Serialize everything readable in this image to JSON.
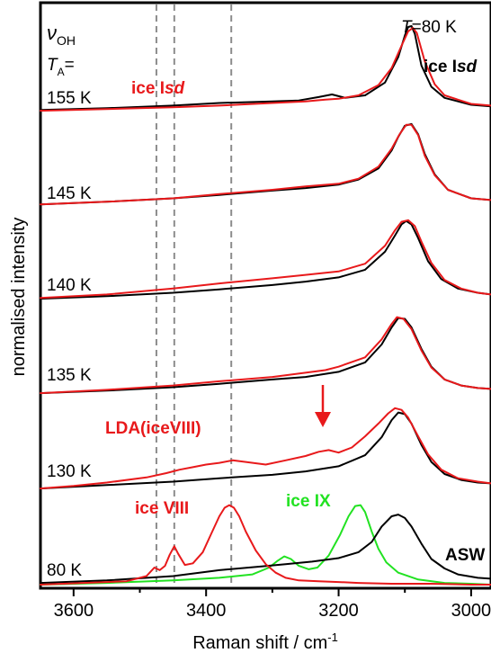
{
  "chart_data": {
    "type": "line",
    "xlabel": "Raman shift / cm",
    "xlabel_sup": "-1",
    "ylabel": "normalised intensity",
    "xlim": [
      3650,
      2970
    ],
    "x_ticks": [
      3600,
      3400,
      3200,
      3000
    ],
    "x_tick_labels": [
      "3600",
      "3400",
      "3200",
      "3000"
    ],
    "y_ticks": false,
    "grid": false,
    "dashed_reference_lines_x": [
      3475,
      3448,
      3362
    ],
    "annotations": {
      "nu_symbol": "ν",
      "nu_sub": "OH",
      "ta_symbol": "T",
      "ta_sub": "A",
      "ta_eq": "=",
      "temperature_T": "T",
      "temperature_value": "=80 K",
      "ice_isd_top": "ice I",
      "ice_isd_top_italic": "sd",
      "ice_isd_red": "ice I",
      "ice_isd_red_italic": "sd",
      "lda_label": "LDA(iceVIII)",
      "ice_viii": "ice VIII",
      "ice_ix": "ice IX",
      "asw": "ASW"
    },
    "temperature_labels": [
      "155 K",
      "145 K",
      "140 K",
      "135 K",
      "130 K",
      "80 K"
    ],
    "colors": {
      "black": "#000000",
      "red": "#e8191b",
      "green": "#22e222",
      "dash": "#8c8c8c"
    },
    "series": [
      {
        "name": "155 K",
        "offset": 5,
        "black": {
          "x": [
            3650,
            3550,
            3450,
            3380,
            3300,
            3260,
            3230,
            3210,
            3190,
            3160,
            3130,
            3110,
            3100,
            3095,
            3090,
            3085,
            3075,
            3060,
            3040,
            3000,
            2970
          ],
          "y": [
            0.03,
            0.05,
            0.08,
            0.11,
            0.13,
            0.14,
            0.18,
            0.21,
            0.17,
            0.2,
            0.35,
            0.65,
            0.9,
            1.0,
            1.01,
            0.92,
            0.55,
            0.3,
            0.17,
            0.09,
            0.07
          ]
        },
        "red": {
          "x": [
            3650,
            3550,
            3450,
            3380,
            3300,
            3250,
            3220,
            3200,
            3170,
            3140,
            3120,
            3105,
            3095,
            3088,
            3082,
            3070,
            3055,
            3040,
            3000,
            2970
          ],
          "y": [
            0.02,
            0.04,
            0.06,
            0.08,
            0.11,
            0.13,
            0.15,
            0.16,
            0.2,
            0.32,
            0.52,
            0.78,
            0.95,
            0.99,
            0.93,
            0.6,
            0.33,
            0.2,
            0.1,
            0.08
          ]
        }
      },
      {
        "name": "145 K",
        "offset": 4,
        "black": {
          "x": [
            3650,
            3550,
            3450,
            3380,
            3300,
            3250,
            3200,
            3170,
            3140,
            3120,
            3110,
            3100,
            3090,
            3080,
            3070,
            3055,
            3035,
            3000,
            2970
          ],
          "y": [
            0.03,
            0.06,
            0.1,
            0.14,
            0.19,
            0.22,
            0.26,
            0.32,
            0.45,
            0.66,
            0.82,
            0.95,
            0.97,
            0.85,
            0.62,
            0.38,
            0.2,
            0.1,
            0.08
          ]
        },
        "red": {
          "x": [
            3650,
            3550,
            3450,
            3380,
            3300,
            3250,
            3200,
            3170,
            3140,
            3120,
            3108,
            3098,
            3090,
            3080,
            3070,
            3055,
            3035,
            3000,
            2970
          ],
          "y": [
            0.03,
            0.06,
            0.1,
            0.15,
            0.2,
            0.24,
            0.27,
            0.33,
            0.47,
            0.68,
            0.85,
            0.96,
            0.96,
            0.84,
            0.6,
            0.37,
            0.2,
            0.1,
            0.08
          ]
        }
      },
      {
        "name": "140 K",
        "offset": 3,
        "black": {
          "x": [
            3650,
            3550,
            3450,
            3380,
            3300,
            3250,
            3200,
            3160,
            3130,
            3115,
            3105,
            3098,
            3090,
            3080,
            3065,
            3045,
            3020,
            2990,
            2970
          ],
          "y": [
            0.03,
            0.06,
            0.1,
            0.14,
            0.19,
            0.23,
            0.28,
            0.37,
            0.58,
            0.77,
            0.9,
            0.94,
            0.9,
            0.74,
            0.47,
            0.26,
            0.15,
            0.1,
            0.08
          ]
        },
        "red": {
          "x": [
            3650,
            3550,
            3450,
            3380,
            3300,
            3250,
            3200,
            3160,
            3130,
            3115,
            3105,
            3095,
            3085,
            3075,
            3060,
            3040,
            3015,
            2990,
            2970
          ],
          "y": [
            0.04,
            0.08,
            0.15,
            0.21,
            0.27,
            0.31,
            0.35,
            0.44,
            0.65,
            0.83,
            0.93,
            0.95,
            0.88,
            0.7,
            0.45,
            0.25,
            0.15,
            0.1,
            0.08
          ]
        }
      },
      {
        "name": "135 K",
        "offset": 2,
        "black": {
          "x": [
            3650,
            3550,
            3450,
            3380,
            3300,
            3250,
            3200,
            3160,
            3135,
            3120,
            3110,
            3100,
            3090,
            3075,
            3060,
            3040,
            3015,
            2990,
            2970
          ],
          "y": [
            0.03,
            0.06,
            0.1,
            0.14,
            0.19,
            0.22,
            0.28,
            0.39,
            0.6,
            0.8,
            0.91,
            0.9,
            0.8,
            0.55,
            0.34,
            0.19,
            0.12,
            0.09,
            0.08
          ]
        },
        "red": {
          "x": [
            3650,
            3550,
            3450,
            3380,
            3300,
            3250,
            3220,
            3200,
            3160,
            3135,
            3120,
            3112,
            3102,
            3090,
            3075,
            3060,
            3040,
            3015,
            2990,
            2970
          ],
          "y": [
            0.03,
            0.07,
            0.12,
            0.17,
            0.22,
            0.27,
            0.3,
            0.34,
            0.45,
            0.66,
            0.84,
            0.92,
            0.9,
            0.78,
            0.53,
            0.33,
            0.19,
            0.12,
            0.09,
            0.08
          ]
        }
      },
      {
        "name": "130 K",
        "offset": 1,
        "black": {
          "x": [
            3650,
            3550,
            3450,
            3380,
            3300,
            3250,
            3200,
            3160,
            3135,
            3120,
            3110,
            3100,
            3090,
            3075,
            3060,
            3040,
            3015,
            2990,
            2970
          ],
          "y": [
            0.02,
            0.06,
            0.1,
            0.14,
            0.18,
            0.22,
            0.28,
            0.41,
            0.62,
            0.82,
            0.91,
            0.89,
            0.78,
            0.53,
            0.33,
            0.19,
            0.12,
            0.09,
            0.08
          ]
        },
        "red": {
          "x": [
            3650,
            3600,
            3550,
            3490,
            3460,
            3440,
            3420,
            3400,
            3380,
            3360,
            3340,
            3310,
            3280,
            3250,
            3230,
            3215,
            3200,
            3180,
            3160,
            3140,
            3125,
            3115,
            3105,
            3095,
            3080,
            3065,
            3045,
            3020,
            2990,
            2970
          ],
          "y": [
            0.02,
            0.05,
            0.09,
            0.15,
            0.2,
            0.24,
            0.27,
            0.3,
            0.32,
            0.35,
            0.33,
            0.3,
            0.35,
            0.4,
            0.45,
            0.47,
            0.44,
            0.5,
            0.63,
            0.78,
            0.9,
            0.96,
            0.94,
            0.85,
            0.63,
            0.42,
            0.24,
            0.14,
            0.1,
            0.08
          ]
        }
      },
      {
        "name": "80 K",
        "offset": 0,
        "black": {
          "x": [
            3650,
            3550,
            3450,
            3380,
            3320,
            3280,
            3240,
            3200,
            3170,
            3150,
            3135,
            3120,
            3110,
            3100,
            3090,
            3075,
            3060,
            3040,
            3020,
            2990,
            2970
          ],
          "y": [
            0.02,
            0.05,
            0.1,
            0.17,
            0.21,
            0.24,
            0.27,
            0.31,
            0.38,
            0.5,
            0.68,
            0.8,
            0.82,
            0.78,
            0.68,
            0.48,
            0.3,
            0.19,
            0.12,
            0.08,
            0.07
          ]
        },
        "red": {
          "x": [
            3650,
            3520,
            3490,
            3478,
            3470,
            3462,
            3455,
            3448,
            3442,
            3432,
            3420,
            3405,
            3392,
            3380,
            3372,
            3365,
            3358,
            3350,
            3340,
            3325,
            3310,
            3295,
            3280,
            3260,
            3230,
            3200,
            3170,
            3120,
            3060,
            3000,
            2970
          ],
          "y": [
            0.0,
            0.04,
            0.1,
            0.2,
            0.17,
            0.22,
            0.35,
            0.45,
            0.36,
            0.23,
            0.25,
            0.38,
            0.6,
            0.8,
            0.9,
            0.93,
            0.9,
            0.8,
            0.62,
            0.4,
            0.24,
            0.14,
            0.08,
            0.05,
            0.04,
            0.03,
            0.02,
            0.01,
            0.01,
            0.0,
            0.0
          ]
        },
        "green": {
          "x": [
            3650,
            3550,
            3450,
            3380,
            3330,
            3305,
            3292,
            3282,
            3272,
            3260,
            3245,
            3232,
            3215,
            3198,
            3185,
            3175,
            3167,
            3160,
            3150,
            3140,
            3128,
            3110,
            3080,
            3040,
            3000,
            2970
          ],
          "y": [
            0.0,
            0.02,
            0.05,
            0.08,
            0.12,
            0.2,
            0.28,
            0.33,
            0.3,
            0.22,
            0.18,
            0.2,
            0.34,
            0.58,
            0.8,
            0.92,
            0.93,
            0.85,
            0.62,
            0.42,
            0.26,
            0.14,
            0.06,
            0.02,
            0.01,
            0.0
          ]
        }
      }
    ]
  }
}
